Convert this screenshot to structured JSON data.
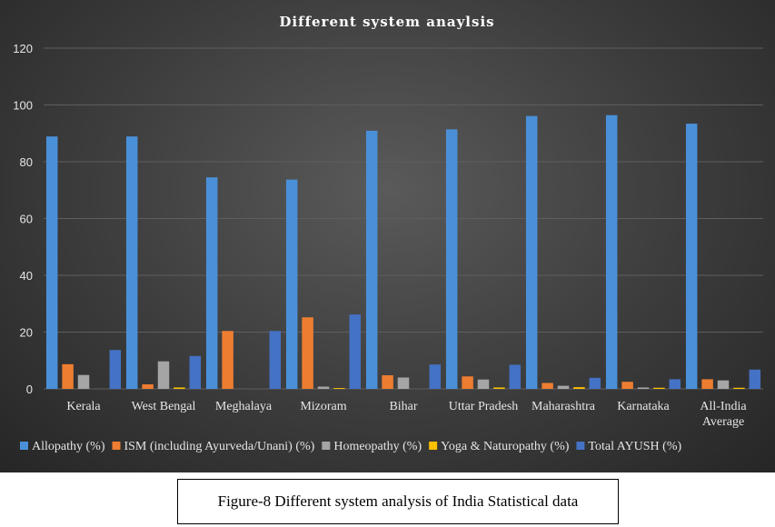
{
  "caption": "Figure-8 Different system analysis of India Statistical data",
  "chart_data": {
    "type": "bar",
    "title": "Different system anaylsis",
    "xlabel": "",
    "ylabel": "",
    "ylim": [
      0,
      120
    ],
    "yticks": [
      0,
      20,
      40,
      60,
      80,
      100,
      120
    ],
    "grid": true,
    "legend_position": "bottom",
    "categories": [
      "Kerala",
      "West Bengal",
      "Meghalaya",
      "Mizoram",
      "Bihar",
      "Uttar Pradesh",
      "Maharashtra",
      "Karnataka",
      "All-India Average"
    ],
    "series": [
      {
        "name": "Allopathy (%)",
        "color": "#4a90d9",
        "values": [
          88.9,
          88.9,
          74.5,
          73.7,
          90.9,
          91.4,
          96.1,
          96.4,
          93.4
        ]
      },
      {
        "name": "ISM (including Ayurveda/Unani) (%)",
        "color": "#ed7d31",
        "values": [
          8.7,
          1.6,
          20.4,
          25.2,
          4.8,
          4.4,
          2.1,
          2.5,
          3.4
        ]
      },
      {
        "name": "Homeopathy (%)",
        "color": "#a5a5a5",
        "values": [
          4.9,
          9.7,
          0,
          0.8,
          4.0,
          3.3,
          1.1,
          0.5,
          3.0
        ]
      },
      {
        "name": "Yoga & Naturopathy (%)",
        "color": "#ffc000",
        "values": [
          0,
          0.5,
          0,
          0.3,
          0,
          0.5,
          0.6,
          0.4,
          0.4
        ]
      },
      {
        "name": "Total AYUSH (%)",
        "color": "#4472c4",
        "values": [
          13.7,
          11.6,
          20.4,
          26.2,
          8.6,
          8.5,
          3.9,
          3.4,
          6.8
        ]
      }
    ]
  }
}
